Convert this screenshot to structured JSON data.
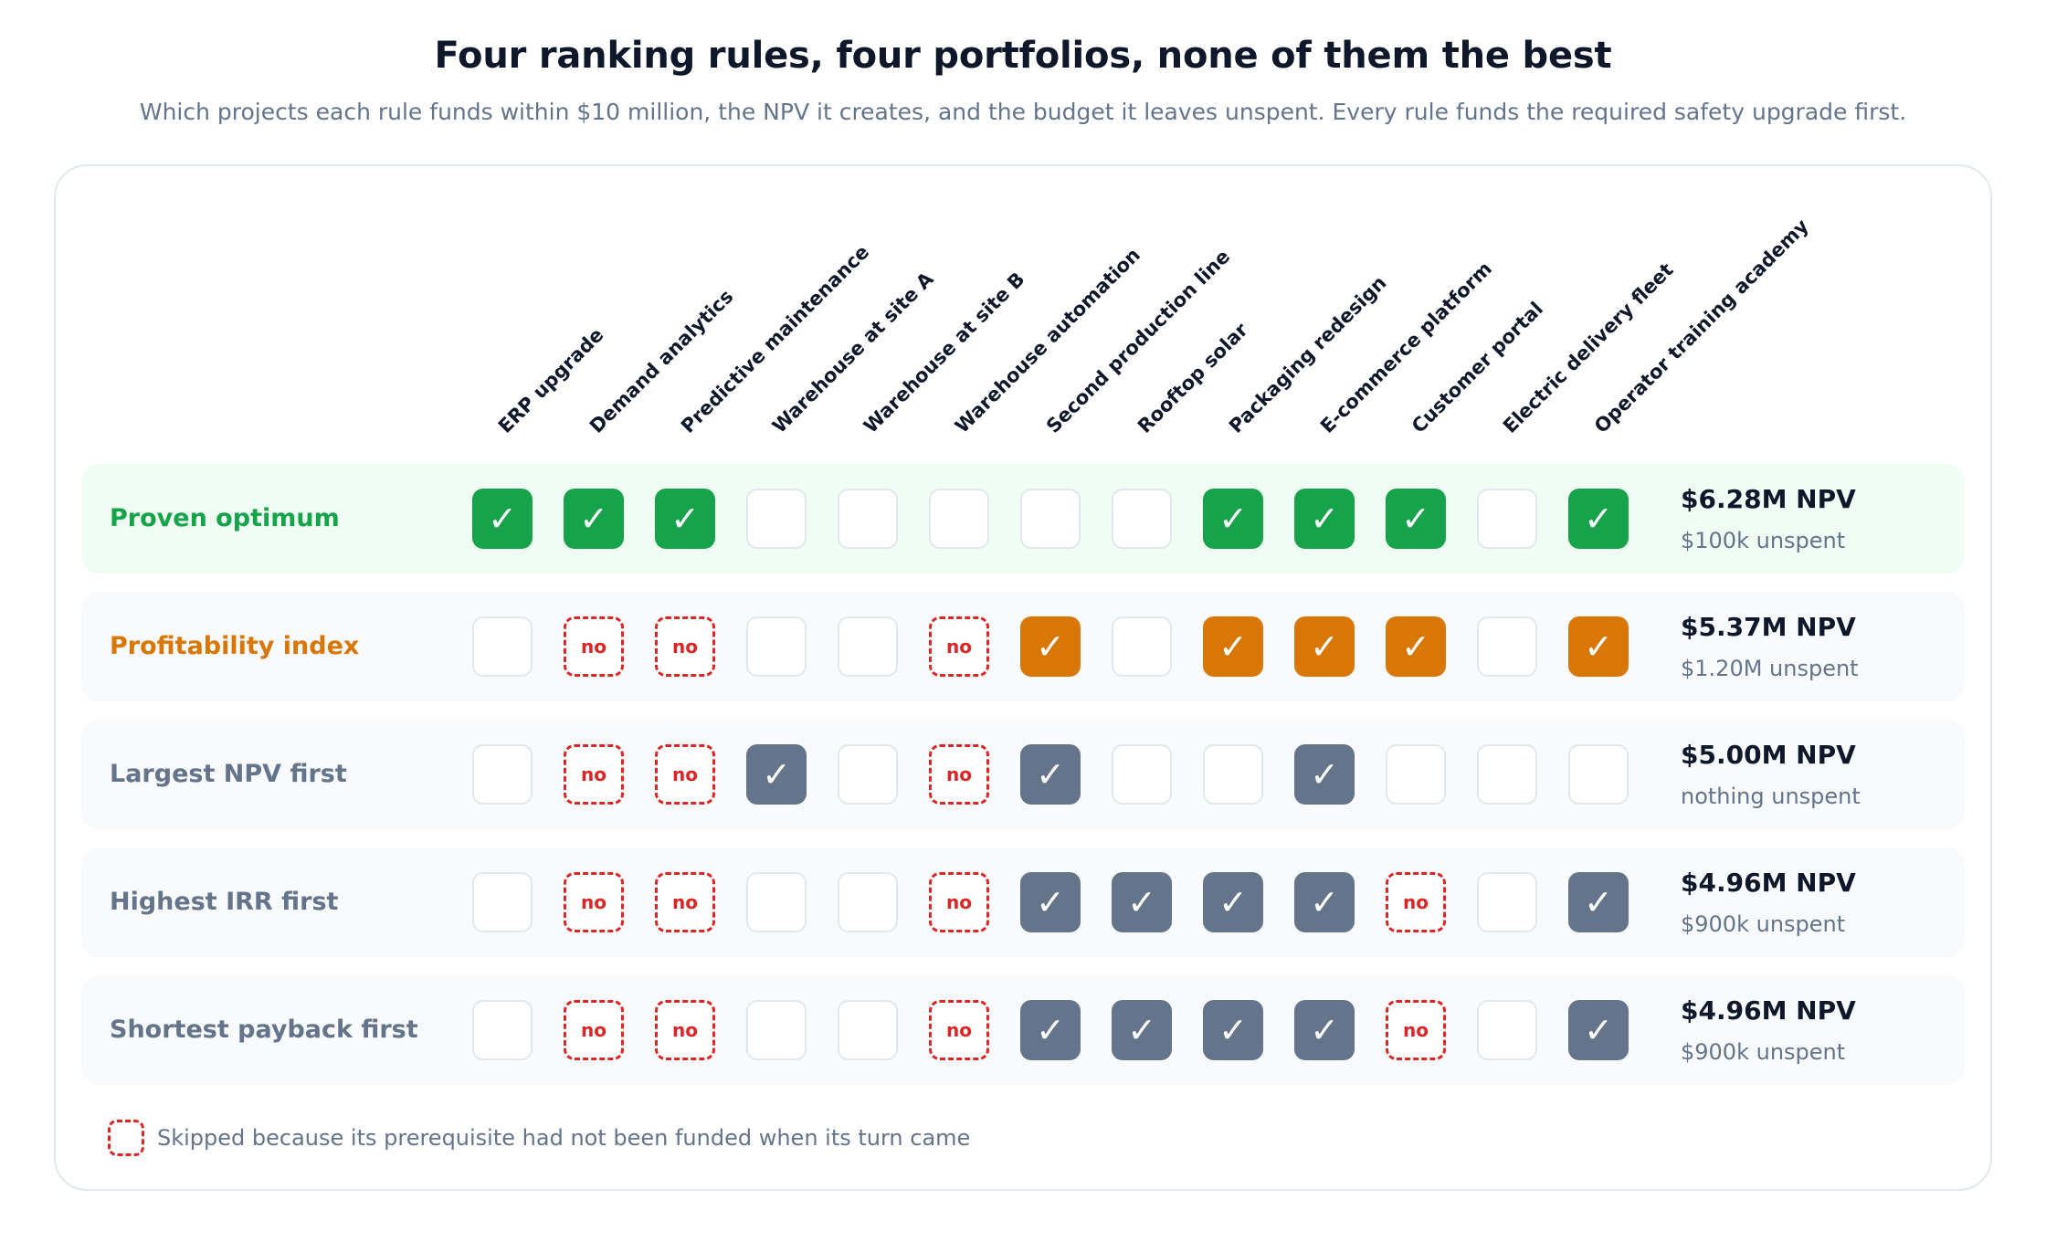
{
  "title": "Four ranking rules, four portfolios, none of them the best",
  "subtitle": "Which projects each rule funds within $10 million, the NPV it creates, and the budget it leaves unspent. Every rule funds the required safety upgrade first.",
  "colors": {
    "optimum": "#16a34a",
    "profitability": "#d97706",
    "neutral": "#64748b",
    "skipped": "#dc2626"
  },
  "chart_data": {
    "type": "table",
    "columns": [
      "ERP upgrade",
      "Demand analytics",
      "Predictive maintenance",
      "Warehouse at site A",
      "Warehouse at site B",
      "Warehouse automation",
      "Second production line",
      "Rooftop solar",
      "Packaging redesign",
      "E-commerce platform",
      "Customer portal",
      "Electric delivery fleet",
      "Operator training academy"
    ],
    "cell_states": [
      "funded",
      "not funded",
      "skipped"
    ],
    "skipped_label": "no",
    "check_symbol": "✓",
    "rows": [
      {
        "rule": "Proven optimum",
        "color": "#16a34a",
        "npv": "$6.28M NPV",
        "unspent": "$100k unspent",
        "cells": [
          "funded",
          "funded",
          "funded",
          "not funded",
          "not funded",
          "not funded",
          "not funded",
          "not funded",
          "funded",
          "funded",
          "funded",
          "not funded",
          "funded"
        ]
      },
      {
        "rule": "Profitability index",
        "color": "#d97706",
        "npv": "$5.37M NPV",
        "unspent": "$1.20M unspent",
        "cells": [
          "not funded",
          "skipped",
          "skipped",
          "not funded",
          "not funded",
          "skipped",
          "funded",
          "not funded",
          "funded",
          "funded",
          "funded",
          "not funded",
          "funded"
        ]
      },
      {
        "rule": "Largest NPV first",
        "color": "#64748b",
        "npv": "$5.00M NPV",
        "unspent": "nothing unspent",
        "cells": [
          "not funded",
          "skipped",
          "skipped",
          "funded",
          "not funded",
          "skipped",
          "funded",
          "not funded",
          "not funded",
          "funded",
          "not funded",
          "not funded",
          "not funded"
        ]
      },
      {
        "rule": "Highest IRR first",
        "color": "#64748b",
        "npv": "$4.96M NPV",
        "unspent": "$900k unspent",
        "cells": [
          "not funded",
          "skipped",
          "skipped",
          "not funded",
          "not funded",
          "skipped",
          "funded",
          "funded",
          "funded",
          "funded",
          "skipped",
          "not funded",
          "funded"
        ]
      },
      {
        "rule": "Shortest payback first",
        "color": "#64748b",
        "npv": "$4.96M NPV",
        "unspent": "$900k unspent",
        "cells": [
          "not funded",
          "skipped",
          "skipped",
          "not funded",
          "not funded",
          "skipped",
          "funded",
          "funded",
          "funded",
          "funded",
          "skipped",
          "not funded",
          "funded"
        ]
      }
    ]
  },
  "legend": {
    "skipped_text": "Skipped because its prerequisite had not been funded when its turn came"
  }
}
